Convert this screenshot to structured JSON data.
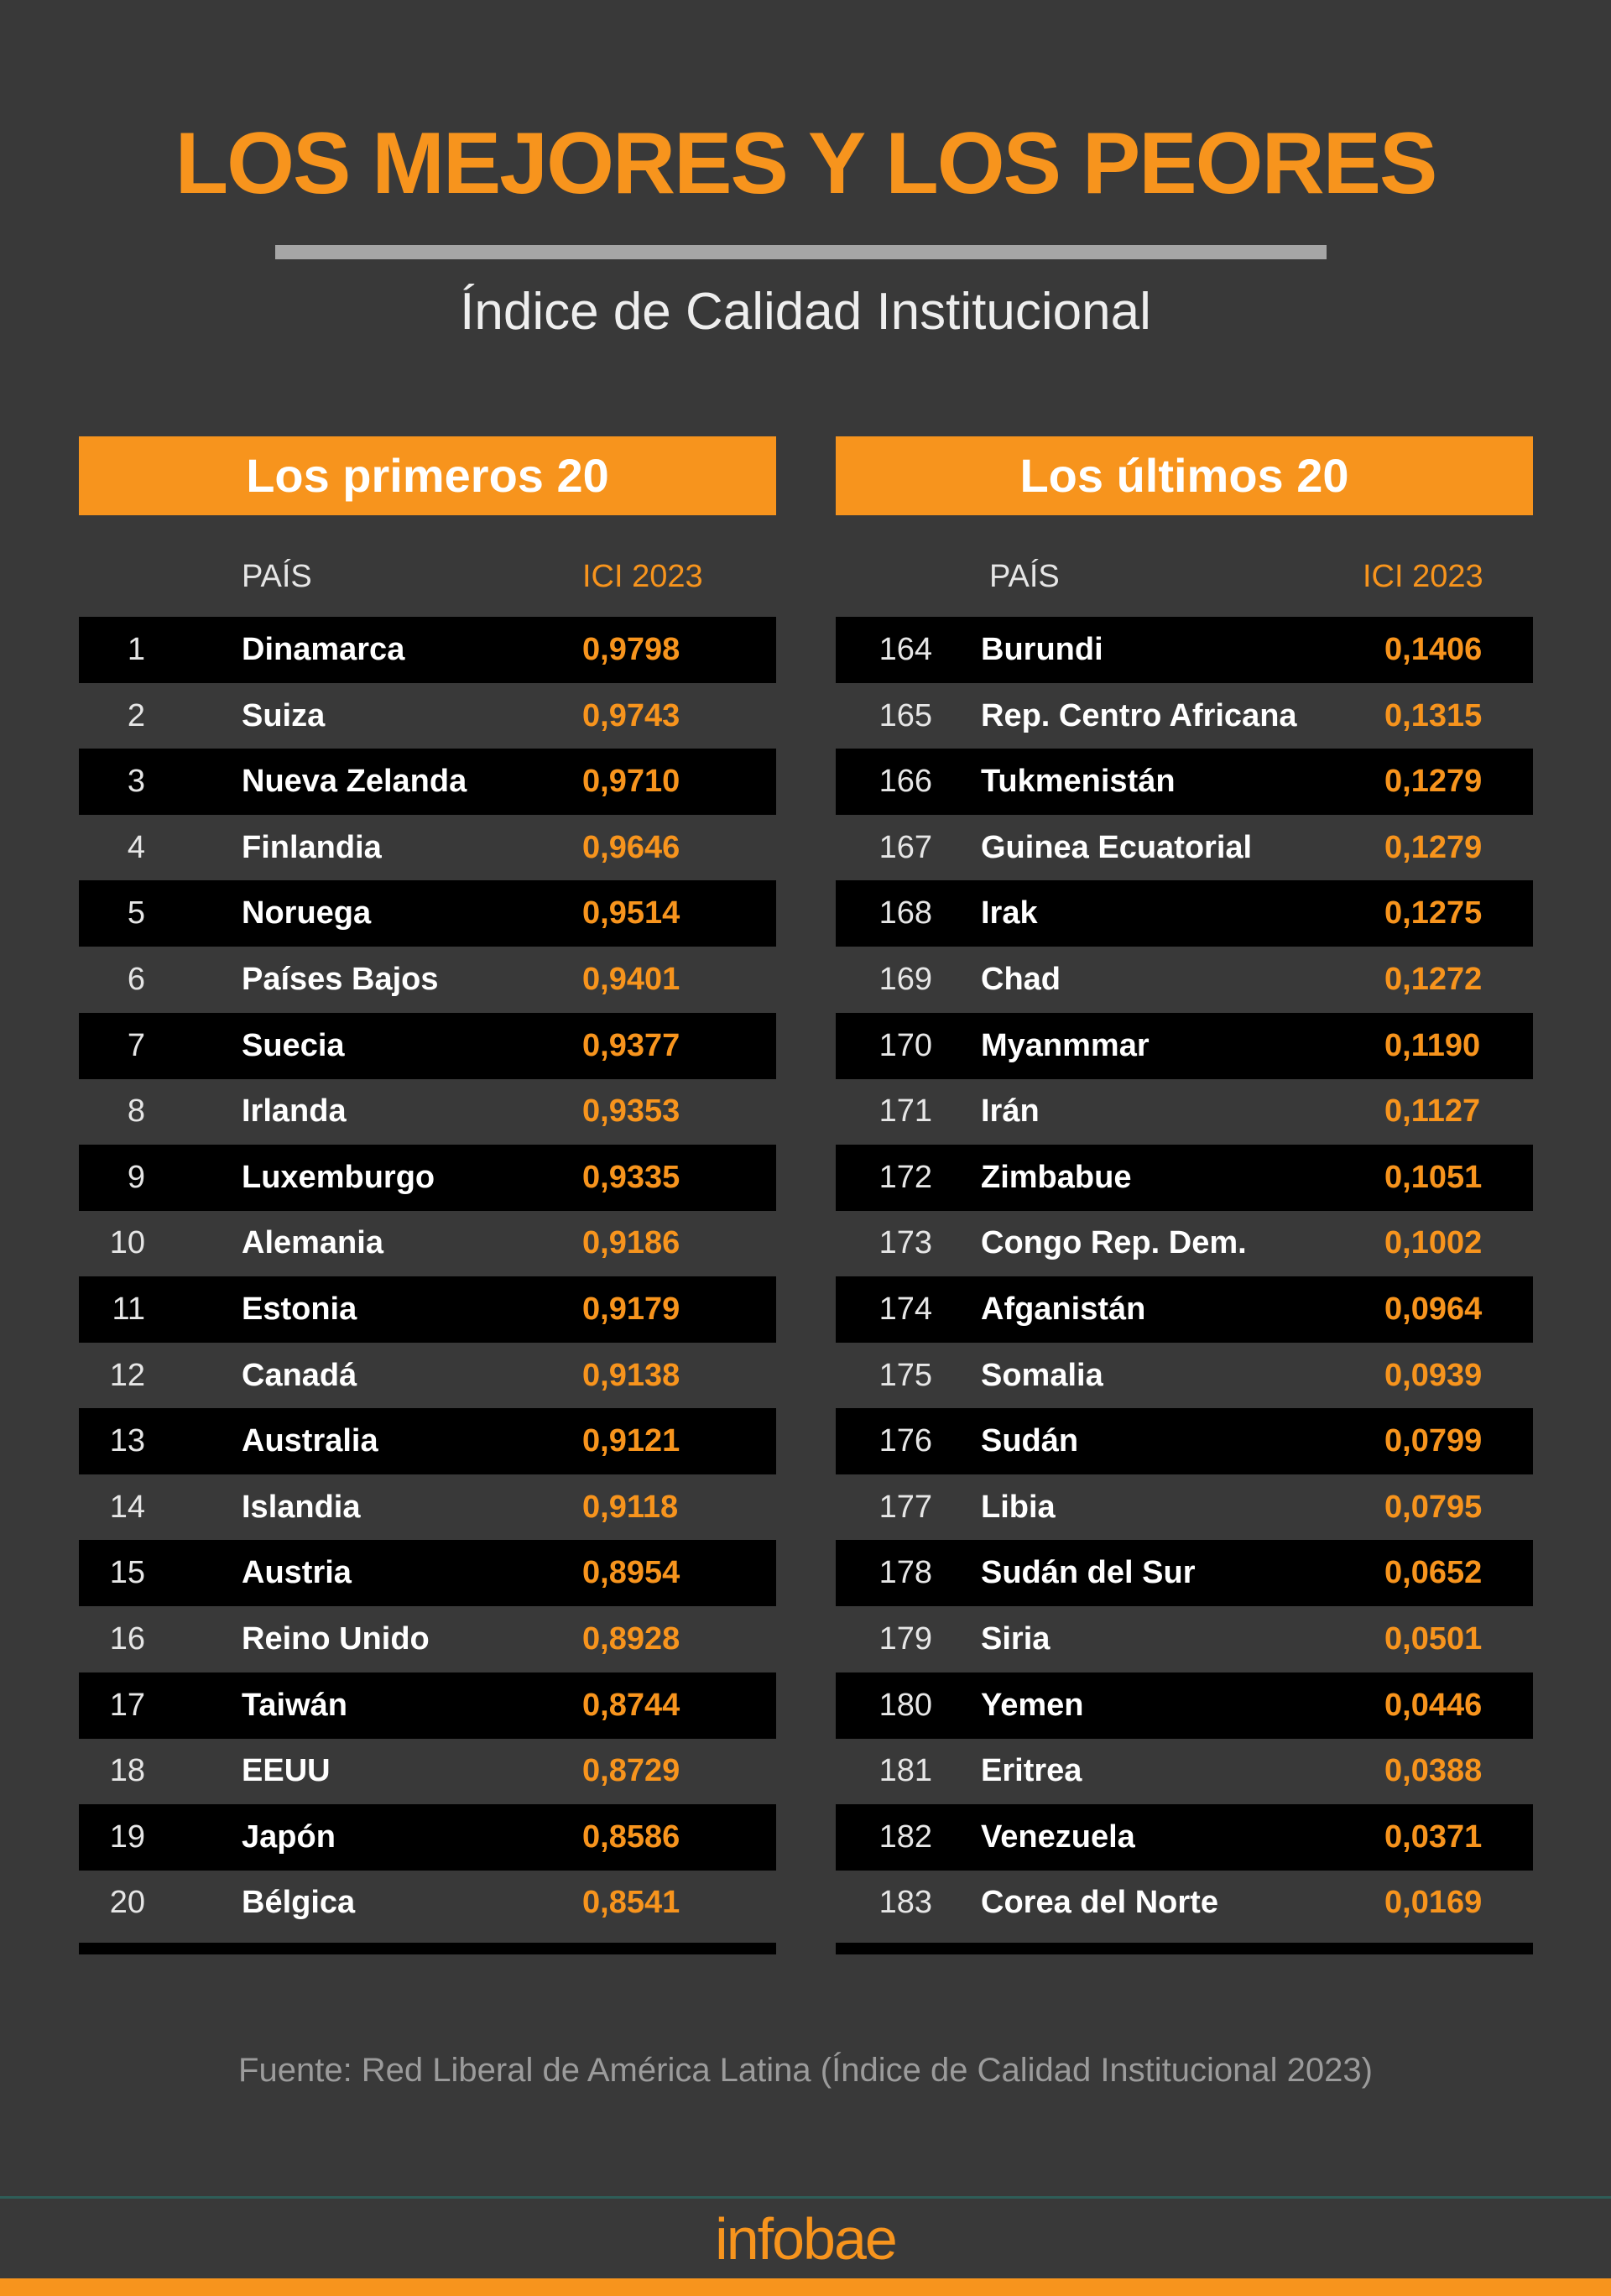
{
  "header": {
    "title": "LOS MEJORES Y LOS PEORES",
    "subtitle": "Índice de Calidad Institucional"
  },
  "tables": [
    {
      "title": "Los primeros 20",
      "columns": [
        "PAÍS",
        "ICI 2023"
      ],
      "rows": [
        [
          "1",
          "Dinamarca",
          "0,9798"
        ],
        [
          "2",
          "Suiza",
          "0,9743"
        ],
        [
          "3",
          "Nueva Zelanda",
          "0,9710"
        ],
        [
          "4",
          "Finlandia",
          "0,9646"
        ],
        [
          "5",
          "Noruega",
          "0,9514"
        ],
        [
          "6",
          "Países Bajos",
          "0,9401"
        ],
        [
          "7",
          "Suecia",
          "0,9377"
        ],
        [
          "8",
          "Irlanda",
          "0,9353"
        ],
        [
          "9",
          "Luxemburgo",
          "0,9335"
        ],
        [
          "10",
          "Alemania",
          "0,9186"
        ],
        [
          "11",
          "Estonia",
          "0,9179"
        ],
        [
          "12",
          "Canadá",
          "0,9138"
        ],
        [
          "13",
          "Australia",
          "0,9121"
        ],
        [
          "14",
          "Islandia",
          "0,9118"
        ],
        [
          "15",
          "Austria",
          "0,8954"
        ],
        [
          "16",
          "Reino Unido",
          "0,8928"
        ],
        [
          "17",
          "Taiwán",
          "0,8744"
        ],
        [
          "18",
          "EEUU",
          "0,8729"
        ],
        [
          "19",
          "Japón",
          "0,8586"
        ],
        [
          "20",
          "Bélgica",
          "0,8541"
        ]
      ]
    },
    {
      "title": "Los últimos 20",
      "columns": [
        "PAÍS",
        "ICI 2023"
      ],
      "rows": [
        [
          "164",
          "Burundi",
          "0,1406"
        ],
        [
          "165",
          "Rep. Centro Africana",
          "0,1315"
        ],
        [
          "166",
          "Tukmenistán",
          "0,1279"
        ],
        [
          "167",
          "Guinea Ecuatorial",
          "0,1279"
        ],
        [
          "168",
          "Irak",
          "0,1275"
        ],
        [
          "169",
          "Chad",
          "0,1272"
        ],
        [
          "170",
          "Myanmmar",
          "0,1190"
        ],
        [
          "171",
          "Irán",
          "0,1127"
        ],
        [
          "172",
          "Zimbabue",
          "0,1051"
        ],
        [
          "173",
          "Congo Rep. Dem.",
          "0,1002"
        ],
        [
          "174",
          "Afganistán",
          "0,0964"
        ],
        [
          "175",
          "Somalia",
          "0,0939"
        ],
        [
          "176",
          "Sudán",
          "0,0799"
        ],
        [
          "177",
          "Libia",
          "0,0795"
        ],
        [
          "178",
          "Sudán del Sur",
          "0,0652"
        ],
        [
          "179",
          "Siria",
          "0,0501"
        ],
        [
          "180",
          "Yemen",
          "0,0446"
        ],
        [
          "181",
          "Eritrea",
          "0,0388"
        ],
        [
          "182",
          "Venezuela",
          "0,0371"
        ],
        [
          "183",
          "Corea del Norte",
          "0,0169"
        ]
      ]
    }
  ],
  "footer": {
    "source": "Fuente: Red Liberal de América Latina (Índice de Calidad Institucional 2023)",
    "logo": "infobae"
  }
}
